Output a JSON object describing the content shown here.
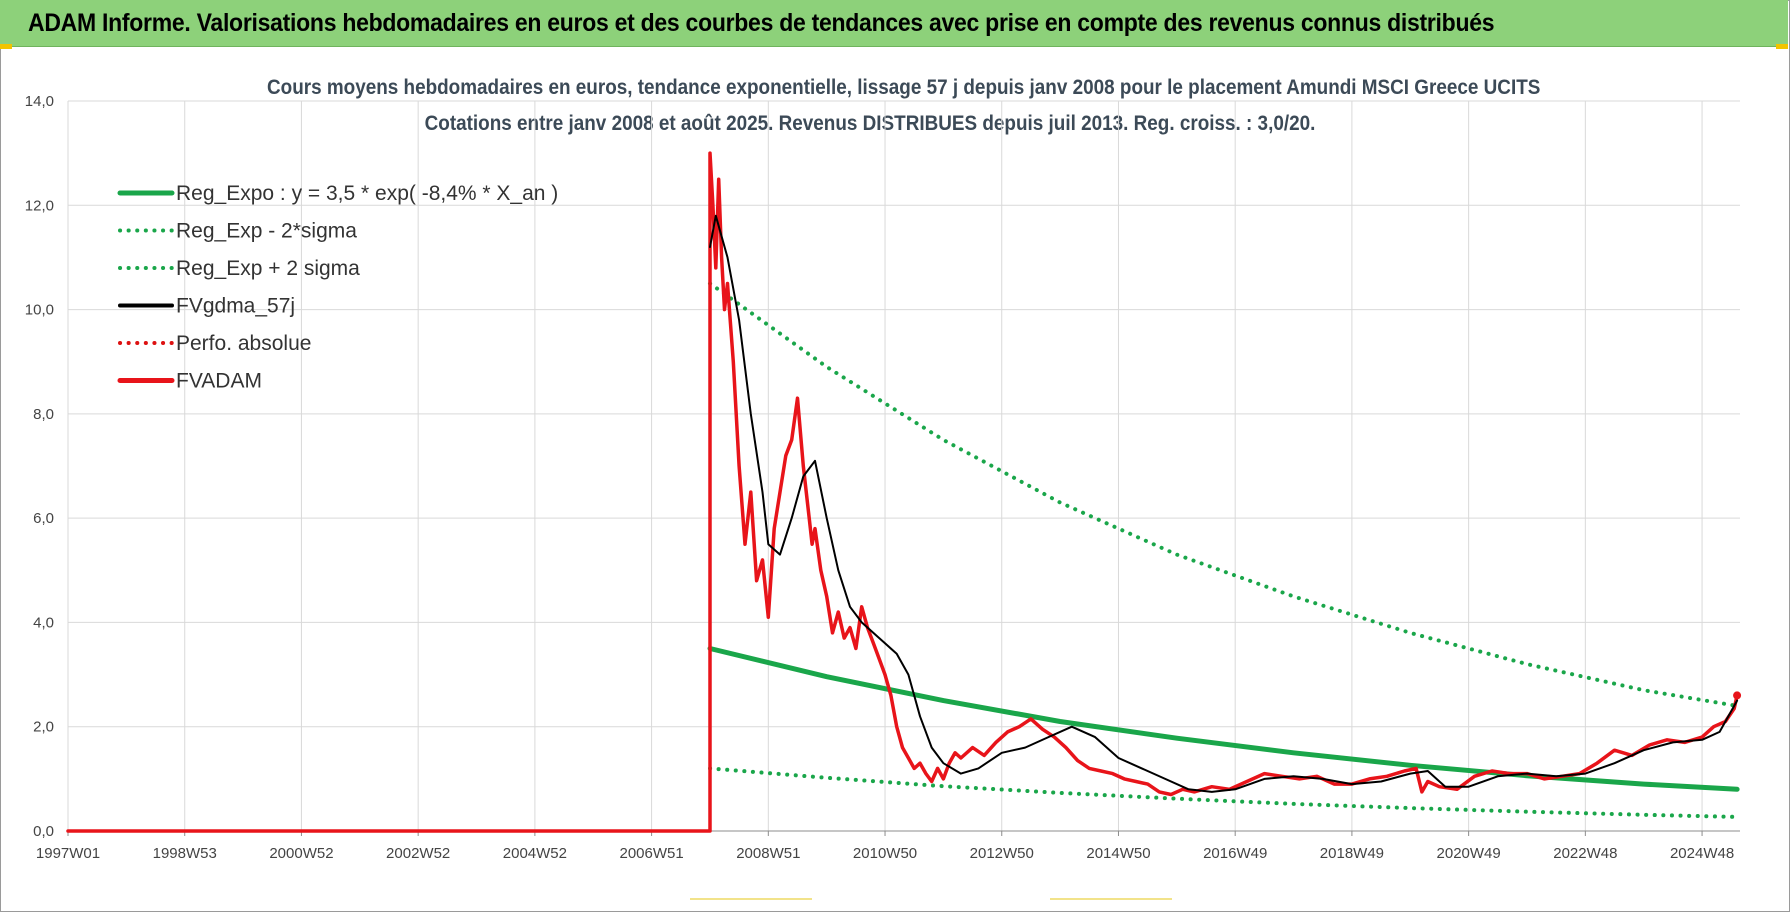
{
  "banner": {
    "title": "ADAM Informe. Valorisations hebdomadaires en euros et des courbes de tendances avec prise en compte des revenus connus distribués"
  },
  "chart_data": {
    "type": "line",
    "title": "Cours moyens hebdomadaires en euros, tendance exponentielle, lissage 57 j depuis janv 2008  pour le placement Amundi MSCI Greece UCITS",
    "subtitle": "Cotations entre janv 2008 et août 2025.  Revenus DISTRIBUES depuis juil 2013.  Reg. croiss. : 3,0/20.",
    "xlabel": "",
    "ylabel": "",
    "ylim": [
      0,
      14
    ],
    "xlim": [
      1997.0,
      2025.65
    ],
    "y_ticks": [
      "0,0",
      "2,0",
      "4,0",
      "6,0",
      "8,0",
      "10,0",
      "12,0",
      "14,0"
    ],
    "x_ticks": [
      {
        "label": "1997W01",
        "x": 1997.0
      },
      {
        "label": "1998W53",
        "x": 1999.0
      },
      {
        "label": "2000W52",
        "x": 2001.0
      },
      {
        "label": "2002W52",
        "x": 2003.0
      },
      {
        "label": "2004W52",
        "x": 2005.0
      },
      {
        "label": "2006W51",
        "x": 2007.0
      },
      {
        "label": "2008W51",
        "x": 2009.0
      },
      {
        "label": "2010W50",
        "x": 2011.0
      },
      {
        "label": "2012W50",
        "x": 2013.0
      },
      {
        "label": "2014W50",
        "x": 2015.0
      },
      {
        "label": "2016W49",
        "x": 2017.0
      },
      {
        "label": "2018W49",
        "x": 2019.0
      },
      {
        "label": "2020W49",
        "x": 2021.0
      },
      {
        "label": "2022W48",
        "x": 2023.0
      },
      {
        "label": "2024W48",
        "x": 2025.0
      }
    ],
    "grid": true,
    "legend_position": "top-left",
    "series": [
      {
        "name": "Reg_Expo : y = 3,5 * exp( -8,4% *  X_an )",
        "color": "#1aa64a",
        "style": "solid",
        "x": [
          2008.0,
          2010.0,
          2012.0,
          2014.0,
          2016.0,
          2018.0,
          2020.0,
          2022.0,
          2024.0,
          2025.6
        ],
        "values": [
          3.5,
          2.96,
          2.5,
          2.1,
          1.78,
          1.5,
          1.26,
          1.06,
          0.9,
          0.8
        ]
      },
      {
        "name": "Reg_Exp - 2*sigma",
        "color": "#1aa64a",
        "style": "dotted",
        "x": [
          2008.0,
          2010.0,
          2012.0,
          2014.0,
          2016.0,
          2018.0,
          2020.0,
          2022.0,
          2024.0,
          2025.6
        ],
        "values": [
          1.2,
          1.02,
          0.86,
          0.73,
          0.62,
          0.52,
          0.44,
          0.37,
          0.31,
          0.27
        ]
      },
      {
        "name": "Reg_Exp + 2 sigma",
        "color": "#1aa64a",
        "style": "dotted",
        "x": [
          2008.0,
          2010.0,
          2012.0,
          2014.0,
          2016.0,
          2018.0,
          2020.0,
          2022.0,
          2024.0,
          2025.6
        ],
        "values": [
          10.5,
          8.9,
          7.5,
          6.3,
          5.3,
          4.5,
          3.8,
          3.2,
          2.7,
          2.4
        ]
      },
      {
        "name": "FVgdma_57j",
        "color": "#000000",
        "style": "solid",
        "x": [
          2008.0,
          2008.1,
          2008.3,
          2008.5,
          2008.7,
          2008.9,
          2009.0,
          2009.2,
          2009.4,
          2009.6,
          2009.8,
          2010.0,
          2010.2,
          2010.4,
          2010.6,
          2010.8,
          2011.0,
          2011.2,
          2011.4,
          2011.6,
          2011.8,
          2012.0,
          2012.3,
          2012.6,
          2013.0,
          2013.4,
          2013.8,
          2014.2,
          2014.6,
          2015.0,
          2015.4,
          2015.8,
          2016.2,
          2016.6,
          2017.0,
          2017.5,
          2018.0,
          2018.5,
          2019.0,
          2019.5,
          2020.0,
          2020.3,
          2020.6,
          2021.0,
          2021.5,
          2022.0,
          2022.5,
          2023.0,
          2023.5,
          2024.0,
          2024.5,
          2025.0,
          2025.3,
          2025.6
        ],
        "values": [
          11.2,
          11.8,
          11.0,
          9.8,
          8.0,
          6.5,
          5.5,
          5.3,
          6.0,
          6.8,
          7.1,
          6.0,
          5.0,
          4.3,
          4.0,
          3.8,
          3.6,
          3.4,
          3.0,
          2.2,
          1.6,
          1.3,
          1.1,
          1.2,
          1.5,
          1.6,
          1.8,
          2.0,
          1.8,
          1.4,
          1.2,
          1.0,
          0.8,
          0.75,
          0.8,
          1.0,
          1.05,
          1.0,
          0.9,
          0.95,
          1.1,
          1.15,
          0.85,
          0.85,
          1.05,
          1.1,
          1.05,
          1.1,
          1.3,
          1.55,
          1.7,
          1.75,
          1.9,
          2.5
        ]
      },
      {
        "name": "Perfo. absolue",
        "color": "#dd1111",
        "style": "dotted",
        "x": [],
        "values": []
      },
      {
        "name": "FVADAM",
        "color": "#e8141a",
        "style": "solid",
        "x": [
          1997.0,
          2008.0,
          2008.0,
          2008.05,
          2008.1,
          2008.15,
          2008.2,
          2008.25,
          2008.3,
          2008.4,
          2008.5,
          2008.6,
          2008.7,
          2008.8,
          2008.9,
          2009.0,
          2009.1,
          2009.2,
          2009.3,
          2009.4,
          2009.5,
          2009.6,
          2009.7,
          2009.75,
          2009.8,
          2009.9,
          2010.0,
          2010.1,
          2010.2,
          2010.3,
          2010.4,
          2010.5,
          2010.6,
          2010.7,
          2010.8,
          2010.9,
          2011.0,
          2011.1,
          2011.2,
          2011.3,
          2011.4,
          2011.5,
          2011.6,
          2011.7,
          2011.8,
          2011.9,
          2012.0,
          2012.1,
          2012.2,
          2012.3,
          2012.5,
          2012.7,
          2012.9,
          2013.1,
          2013.3,
          2013.5,
          2013.7,
          2013.9,
          2014.1,
          2014.3,
          2014.5,
          2014.7,
          2014.9,
          2015.1,
          2015.3,
          2015.5,
          2015.7,
          2015.9,
          2016.1,
          2016.3,
          2016.6,
          2016.9,
          2017.2,
          2017.5,
          2017.8,
          2018.1,
          2018.4,
          2018.7,
          2019.0,
          2019.3,
          2019.6,
          2019.9,
          2020.1,
          2020.2,
          2020.3,
          2020.5,
          2020.8,
          2021.1,
          2021.4,
          2021.7,
          2022.0,
          2022.3,
          2022.6,
          2022.9,
          2023.2,
          2023.5,
          2023.8,
          2024.1,
          2024.4,
          2024.7,
          2025.0,
          2025.2,
          2025.4,
          2025.55,
          2025.6
        ],
        "values": [
          0.0,
          0.0,
          13.0,
          12.0,
          10.8,
          12.5,
          11.0,
          10.0,
          10.5,
          9.0,
          7.0,
          5.5,
          6.5,
          4.8,
          5.2,
          4.1,
          5.8,
          6.5,
          7.2,
          7.5,
          8.3,
          7.0,
          6.0,
          5.5,
          5.8,
          5.0,
          4.5,
          3.8,
          4.2,
          3.7,
          3.9,
          3.5,
          4.3,
          3.9,
          3.6,
          3.3,
          3.0,
          2.6,
          2.0,
          1.6,
          1.4,
          1.2,
          1.3,
          1.1,
          0.95,
          1.2,
          1.0,
          1.3,
          1.5,
          1.4,
          1.6,
          1.45,
          1.7,
          1.9,
          2.0,
          2.15,
          1.95,
          1.8,
          1.6,
          1.35,
          1.2,
          1.15,
          1.1,
          1.0,
          0.95,
          0.9,
          0.75,
          0.7,
          0.8,
          0.75,
          0.85,
          0.8,
          0.95,
          1.1,
          1.05,
          1.0,
          1.05,
          0.9,
          0.9,
          1.0,
          1.05,
          1.15,
          1.2,
          0.75,
          0.95,
          0.85,
          0.8,
          1.05,
          1.15,
          1.1,
          1.1,
          1.0,
          1.05,
          1.1,
          1.3,
          1.55,
          1.45,
          1.65,
          1.75,
          1.7,
          1.8,
          2.0,
          2.1,
          2.35,
          2.6
        ]
      }
    ]
  }
}
